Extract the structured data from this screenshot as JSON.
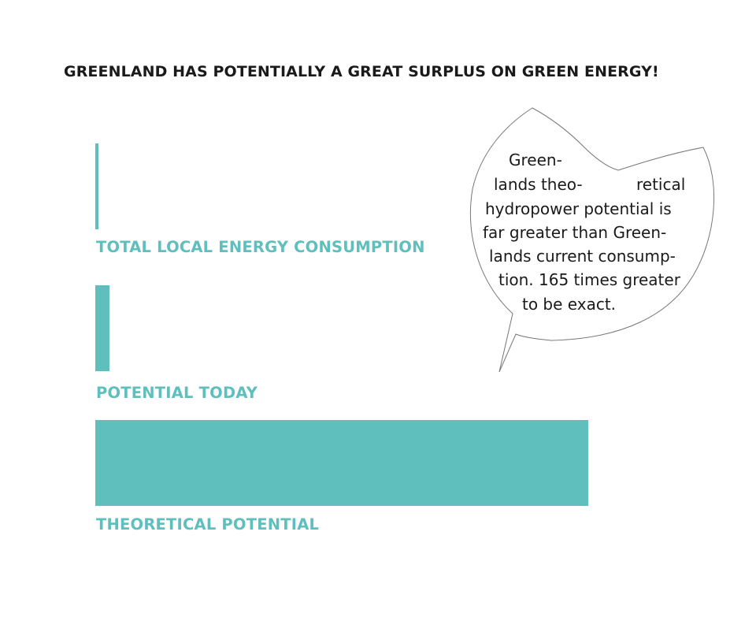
{
  "title": "GREENLAND HAS POTENTIALLY A GREAT SURPLUS ON GREEN ENERGY!",
  "colors": {
    "bar": "#5fbfbd",
    "label": "#5fbfbd",
    "title": "#1a1a1a",
    "bubble_stroke": "#777777"
  },
  "chart_data": {
    "type": "bar",
    "orientation": "horizontal",
    "categories": [
      "TOTAL LOCAL ENERGY CONSUMPTION",
      "POTENTIAL TODAY",
      "THEORETICAL POTENTIAL"
    ],
    "values": [
      1,
      4.7,
      165
    ],
    "axes_shown": false,
    "grid": false
  },
  "callout": {
    "lines": [
      "Green-",
      "lands theo-",
      "retical",
      "hydropower potential is",
      "far greater than Green-",
      "lands current consump-",
      "tion. 165 times greater",
      "to be exact."
    ]
  }
}
